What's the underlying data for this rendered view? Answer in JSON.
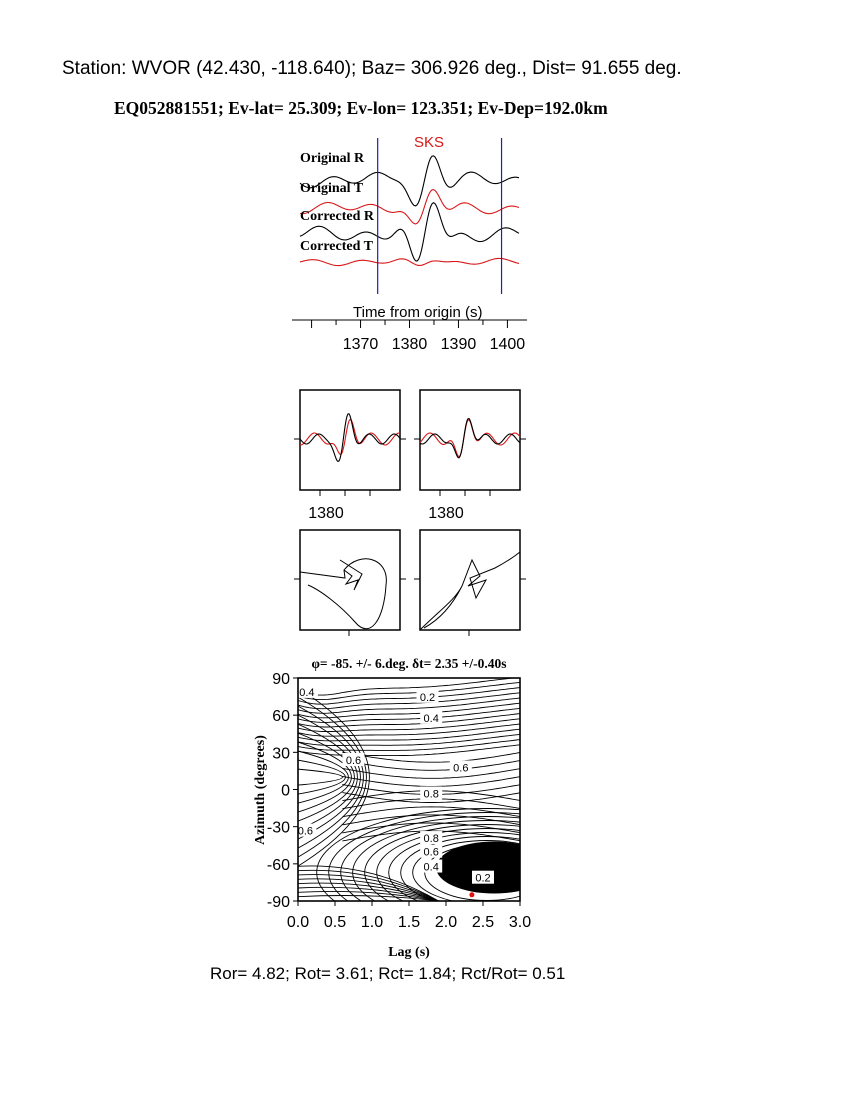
{
  "header": {
    "station_line": "Station: WVOR (42.430, -118.640); Baz=  306.926 deg., Dist=   91.655 deg.",
    "event_line": "EQ052881551; Ev-lat=  25.309; Ev-lon= 123.351; Ev-Dep=192.0km"
  },
  "footer": {
    "ratios_line": "Ror= 4.82; Rot= 3.61; Rct= 1.84; Rct/Rot= 0.51"
  },
  "colors": {
    "radial": "#000000",
    "transverse": "#d81818",
    "window_marker": "#2020b0",
    "phase_label": "#d81818",
    "best_fit_marker": "#e01010"
  },
  "chart_data": [
    {
      "type": "line",
      "id": "waveforms",
      "phase_label": "SKS",
      "trace_labels": [
        "Original R",
        "Original T",
        "Corrected R",
        "Corrected T"
      ],
      "xlabel": "Time from origin (s)",
      "x_ticks": [
        "1370",
        "1380",
        "1390",
        "1400"
      ],
      "xlim": [
        1356,
        1404
      ],
      "window": [
        1373.5,
        1398.8
      ]
    },
    {
      "type": "line",
      "id": "waveform-comparison",
      "panels": [
        {
          "name": "original",
          "x_tick_label": "1380"
        },
        {
          "name": "corrected",
          "x_tick_label": "1380"
        }
      ]
    },
    {
      "type": "scatter",
      "id": "particle-motion",
      "panels": [
        {
          "name": "original"
        },
        {
          "name": "corrected"
        }
      ]
    },
    {
      "type": "heatmap",
      "id": "energy-grid",
      "title": "φ= -85. +/- 6.deg. δt= 2.35 +/-0.40s",
      "xlabel": "Lag (s)",
      "ylabel": "Azimuth (degrees)",
      "xlim": [
        0,
        3
      ],
      "ylim": [
        -90,
        90
      ],
      "x_ticks": [
        "0.0",
        "0.5",
        "1.0",
        "1.5",
        "2.0",
        "2.5",
        "3.0"
      ],
      "y_ticks": [
        "90",
        "60",
        "30",
        "0",
        "-30",
        "-60",
        "-90"
      ],
      "contour_labels": [
        {
          "text": "0.4",
          "x": 0.12,
          "y": 78
        },
        {
          "text": "0.2",
          "x": 1.75,
          "y": 74
        },
        {
          "text": "0.4",
          "x": 1.8,
          "y": 57
        },
        {
          "text": "0.6",
          "x": 0.75,
          "y": 23
        },
        {
          "text": "0.6",
          "x": 2.2,
          "y": 17
        },
        {
          "text": "0.8",
          "x": 1.8,
          "y": -4
        },
        {
          "text": "0.6",
          "x": 0.1,
          "y": -34
        },
        {
          "text": "0.8",
          "x": 1.8,
          "y": -40
        },
        {
          "text": "0.6",
          "x": 1.8,
          "y": -51
        },
        {
          "text": "0.4",
          "x": 1.8,
          "y": -63
        },
        {
          "text": "0.2",
          "x": 2.5,
          "y": -72
        }
      ],
      "best_fit": {
        "lag": 2.35,
        "azimuth": -85
      }
    }
  ]
}
